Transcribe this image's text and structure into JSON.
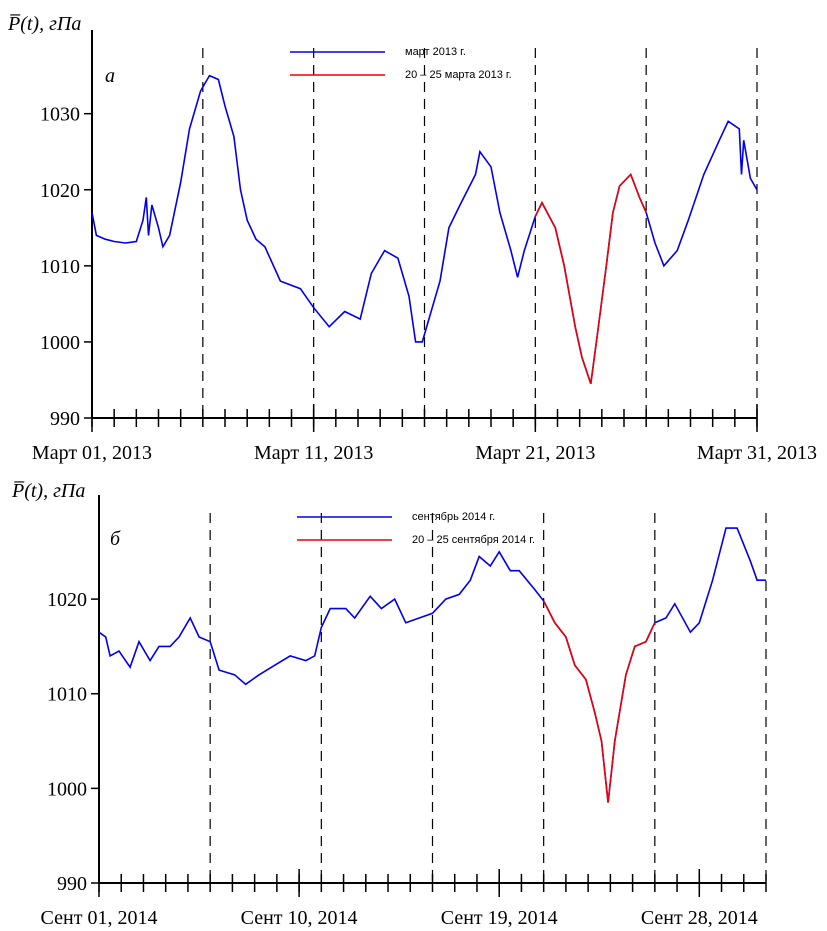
{
  "chart_data": [
    {
      "type": "line",
      "ylabel": "P̅(t), гПа",
      "annotation": "а",
      "xlim": [
        1,
        31
      ],
      "ylim": [
        990,
        1041
      ],
      "xticks": [
        {
          "value": 1,
          "label": "Март 01, 2013"
        },
        {
          "value": 11,
          "label": "Март 11, 2013"
        },
        {
          "value": 21,
          "label": "Март 21, 2013"
        },
        {
          "value": 31,
          "label": "Март 31, 2013"
        }
      ],
      "xminorticks": [
        1,
        2,
        3,
        4,
        5,
        6,
        7,
        8,
        9,
        10,
        11,
        12,
        13,
        14,
        15,
        16,
        17,
        18,
        19,
        20,
        21,
        22,
        23,
        24,
        25,
        26,
        27,
        28,
        29,
        30,
        31
      ],
      "vlines": [
        6,
        11,
        16,
        21,
        26,
        31
      ],
      "yticks": [
        990,
        1000,
        1010,
        1020,
        1030
      ],
      "series": [
        {
          "name": "март 2013 г.",
          "color": "#0000ee",
          "x": [
            1,
            1.2,
            1.6,
            2,
            2.5,
            3,
            3.3,
            3.45,
            3.55,
            3.7,
            4,
            4.2,
            4.5,
            5,
            5.4,
            5.9,
            6.3,
            6.7,
            7,
            7.4,
            7.7,
            8,
            8.4,
            8.8,
            9.5,
            10.4,
            11,
            11.7,
            12.4,
            13.1,
            13.6,
            14.2,
            14.8,
            15.3,
            15.6,
            15.9,
            16.2,
            16.7,
            17.1,
            17.6,
            18.3,
            18.5,
            19,
            19.4,
            19.9,
            20.2,
            20.5,
            21,
            21.3,
            21.9,
            22.3,
            22.8,
            23.1,
            23.5,
            23.8,
            24.2,
            24.5,
            24.8,
            25.3,
            25.7,
            26,
            26.4,
            26.8,
            27.4,
            27.9,
            28.6,
            29.3,
            29.7,
            30.2,
            30.3,
            30.4,
            30.7,
            31
          ],
          "values": [
            1017,
            1014,
            1013.5,
            1013.2,
            1013,
            1013.2,
            1016,
            1019,
            1014,
            1018,
            1015,
            1012.5,
            1014,
            1021,
            1028,
            1033,
            1035,
            1034.5,
            1031,
            1027,
            1020,
            1016,
            1013.5,
            1012.5,
            1008,
            1007,
            1004.5,
            1002,
            1004,
            1003,
            1009,
            1012,
            1011,
            1006,
            1000,
            1000,
            1003,
            1008,
            1015,
            1018,
            1022,
            1025,
            1023,
            1017,
            1012,
            1008.5,
            1012,
            1016.5,
            1018.3,
            1015,
            1010,
            1002,
            998,
            994.5,
            1001,
            1010,
            1017,
            1020.5,
            1022,
            1019,
            1017,
            1013,
            1010,
            1012,
            1016,
            1022,
            1026.5,
            1029,
            1028,
            1022,
            1026.5,
            1021.5,
            1020
          ]
        },
        {
          "name": "20 –  25 марта 2013 г.",
          "color": "#ee0000",
          "x": [
            21,
            21.3,
            21.9,
            22.3,
            22.8,
            23.1,
            23.5,
            23.8,
            24.2,
            24.5,
            24.8,
            25.3,
            25.7,
            26
          ],
          "values": [
            1016.5,
            1018.3,
            1015,
            1010,
            1002,
            998,
            994.5,
            1001,
            1010,
            1017,
            1020.5,
            1022,
            1019,
            1017
          ]
        }
      ]
    },
    {
      "type": "line",
      "ylabel": "P̅(t), гПа",
      "annotation": "б",
      "xlim": [
        1,
        31
      ],
      "ylim": [
        990,
        1031
      ],
      "xticks": [
        {
          "value": 1,
          "label": "Сент 01, 2014"
        },
        {
          "value": 10,
          "label": "Сент 10, 2014"
        },
        {
          "value": 19,
          "label": "Сент 19, 2014"
        },
        {
          "value": 28,
          "label": "Сент 28, 2014"
        }
      ],
      "xminorticks": [
        1,
        2,
        3,
        4,
        5,
        6,
        7,
        8,
        9,
        10,
        11,
        12,
        13,
        14,
        15,
        16,
        17,
        18,
        19,
        20,
        21,
        22,
        23,
        24,
        25,
        26,
        27,
        28,
        29,
        30,
        31
      ],
      "vlines": [
        6,
        11,
        16,
        21,
        26,
        31
      ],
      "yticks": [
        990,
        1000,
        1010,
        1020
      ],
      "series": [
        {
          "name": "сентябрь 2014 г.",
          "color": "#0000ee",
          "x": [
            1,
            1.3,
            1.5,
            1.9,
            2.4,
            2.8,
            3.3,
            3.7,
            4.2,
            4.6,
            5.1,
            5.5,
            6,
            6.4,
            7.1,
            7.6,
            8.2,
            8.9,
            9.6,
            10.3,
            10.7,
            11,
            11.4,
            12.1,
            12.5,
            13.2,
            13.7,
            14.3,
            14.8,
            15.4,
            16,
            16.6,
            17.2,
            17.7,
            18.1,
            18.6,
            19,
            19.5,
            19.9,
            20.6,
            21,
            21.5,
            22,
            22.4,
            22.9,
            23.3,
            23.6,
            23.9,
            24.2,
            24.7,
            25.1,
            25.6,
            26,
            26.5,
            26.9,
            27.6,
            28,
            28.6,
            29.2,
            29.7,
            30.3,
            30.6,
            31
          ],
          "values": [
            1016.5,
            1016,
            1014,
            1014.5,
            1012.8,
            1015.5,
            1013.5,
            1015,
            1015,
            1016,
            1018,
            1016,
            1015.5,
            1012.5,
            1012,
            1011,
            1012,
            1013,
            1014,
            1013.5,
            1014,
            1017,
            1019,
            1019,
            1018,
            1020.3,
            1019,
            1020,
            1017.5,
            1018,
            1018.5,
            1020,
            1020.5,
            1022,
            1024.5,
            1023.5,
            1025,
            1023,
            1023,
            1021,
            1019.8,
            1017.5,
            1016,
            1013,
            1011.5,
            1008,
            1005,
            998.5,
            1005,
            1012,
            1015,
            1015.5,
            1017.5,
            1018,
            1019.5,
            1016.5,
            1017.5,
            1022,
            1027.5,
            1027.5,
            1024,
            1022,
            1022
          ]
        },
        {
          "name": "20 – 25 сентября 2014 г.",
          "color": "#ee0000",
          "x": [
            21,
            21.5,
            22,
            22.4,
            22.9,
            23.3,
            23.6,
            23.9,
            24.2,
            24.7,
            25.1,
            25.6,
            26
          ],
          "values": [
            1019.8,
            1017.5,
            1016,
            1013,
            1011.5,
            1008,
            1005,
            998.5,
            1005,
            1012,
            1015,
            1015.5,
            1017.5
          ]
        }
      ]
    }
  ]
}
